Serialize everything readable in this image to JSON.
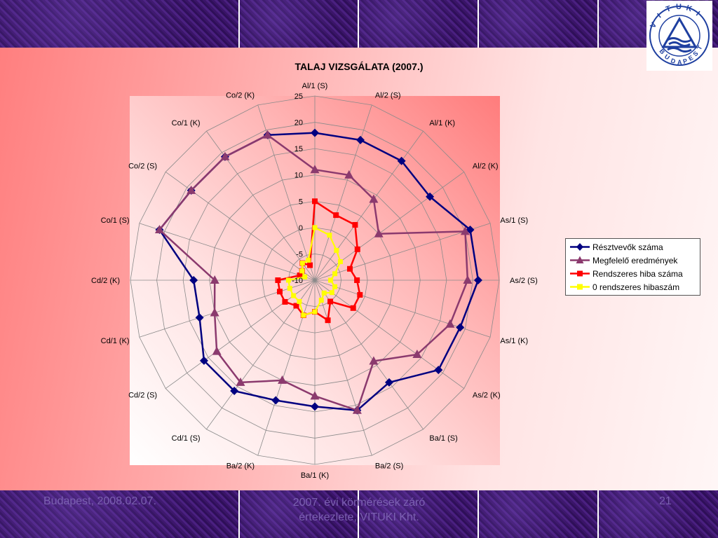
{
  "chart_data": {
    "type": "radar",
    "title": "TALAJ VIZSGÁLATA (2007.)",
    "categories": [
      "Al/1 (S)",
      "Al/2 (S)",
      "Al/1 (K)",
      "Al/2 (K)",
      "As/1 (S)",
      "As/2 (S)",
      "As/1 (K)",
      "As/2 (K)",
      "Ba/1 (S)",
      "Ba/2 (S)",
      "Ba/1 (K)",
      "Ba/2 (K)",
      "Cd/1 (S)",
      "Cd/2 (S)",
      "Cd/1 (K)",
      "Cd/2 (K)",
      "Co/1 (S)",
      "Co/2 (S)",
      "Co/1 (K)",
      "Co/2 (K)"
    ],
    "rlim": [
      -10,
      25
    ],
    "ticks": [
      25,
      20,
      15,
      10,
      5,
      0,
      -5,
      -10
    ],
    "series": [
      {
        "name": "Résztvevők száma",
        "color": "#000080",
        "marker": "diamond",
        "values": [
          18,
          18,
          18,
          17,
          21,
          21,
          19,
          19,
          14,
          16,
          14,
          14,
          16,
          16,
          13,
          13,
          21,
          19,
          19,
          19
        ]
      },
      {
        "name": "Megfelelő eredmények",
        "color": "#8b3a6e",
        "marker": "triangle",
        "values": [
          11,
          11,
          9,
          5,
          20,
          19,
          17,
          14,
          9,
          16,
          12,
          10,
          14,
          13,
          10,
          9,
          21,
          19,
          19,
          19
        ]
      },
      {
        "name": "Rendszeres hiba száma",
        "color": "#ff0000",
        "marker": "square",
        "values": [
          5,
          3,
          3,
          0,
          -3,
          -2,
          -1,
          -1,
          -5,
          -2,
          -4,
          -3,
          -4,
          -3,
          -3,
          -3,
          -7,
          -7,
          -6,
          -7
        ]
      },
      {
        "name": "0 rendszeres hibaszám",
        "color": "#ffff00",
        "marker": "square",
        "values": [
          0,
          -1,
          -3,
          -4,
          -6,
          -7,
          -6,
          -6,
          -7,
          -6,
          -4,
          -3,
          -5,
          -5,
          -5,
          -5,
          -8,
          -7,
          -6,
          -6
        ]
      }
    ]
  },
  "footer": {
    "date": "Budapest, 2008.02.07.",
    "center_line1": "2007. évi körmérések záró",
    "center_line2": "értekezlete, VITUKI Kht.",
    "page": "21"
  },
  "logo": {
    "text": "VITUKI",
    "subtext": "BUDAPEST"
  }
}
